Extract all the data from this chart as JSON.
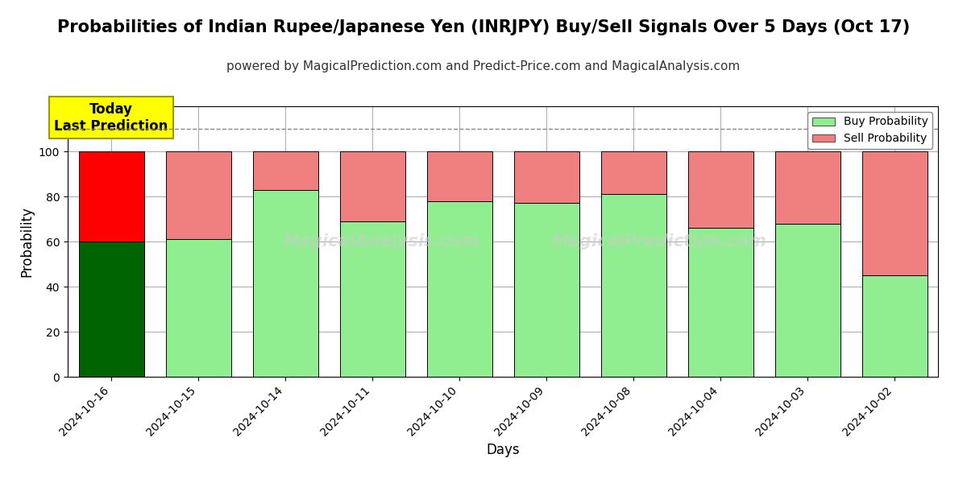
{
  "title": "Probabilities of Indian Rupee/Japanese Yen (INRJPY) Buy/Sell Signals Over 5 Days (Oct 17)",
  "subtitle": "powered by MagicalPrediction.com and Predict-Price.com and MagicalAnalysis.com",
  "xlabel": "Days",
  "ylabel": "Probability",
  "categories": [
    "2024-10-16",
    "2024-10-15",
    "2024-10-14",
    "2024-10-11",
    "2024-10-10",
    "2024-10-09",
    "2024-10-08",
    "2024-10-04",
    "2024-10-03",
    "2024-10-02"
  ],
  "buy_values": [
    60,
    61,
    83,
    69,
    78,
    77,
    81,
    66,
    68,
    45
  ],
  "sell_values": [
    40,
    39,
    17,
    31,
    22,
    23,
    19,
    34,
    32,
    55
  ],
  "today_buy_color": "#006400",
  "today_sell_color": "#FF0000",
  "buy_color": "#90EE90",
  "sell_color": "#F08080",
  "bar_edge_color": "#000000",
  "ylim": [
    0,
    120
  ],
  "yticks": [
    0,
    20,
    40,
    60,
    80,
    100
  ],
  "dashed_line_y": 110,
  "legend_buy_label": "Buy Probability",
  "legend_sell_label": "Sell Probability",
  "annotation_text": "Today\nLast Prediction",
  "annotation_bg_color": "#FFFF00",
  "background_color": "#FFFFFF",
  "grid_color": "#AAAAAA",
  "title_fontsize": 15,
  "subtitle_fontsize": 11,
  "axis_label_fontsize": 12,
  "tick_fontsize": 10
}
